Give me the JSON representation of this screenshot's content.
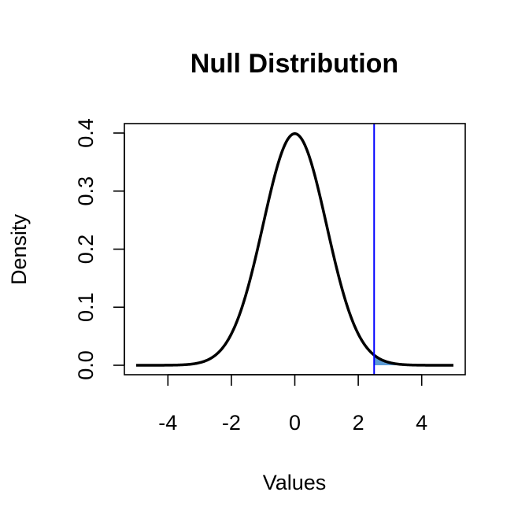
{
  "chart_data": {
    "type": "line",
    "title": "Null Distribution",
    "xlabel": "Values",
    "ylabel": "Density",
    "xlim": [
      -5,
      5
    ],
    "ylim": [
      0,
      0.4
    ],
    "x_ticks": [
      -4,
      -2,
      0,
      2,
      4
    ],
    "x_tick_labels": [
      "-4",
      "-2",
      "0",
      "2",
      "4"
    ],
    "y_ticks": [
      0.0,
      0.1,
      0.2,
      0.3,
      0.4
    ],
    "y_tick_labels": [
      "0.0",
      "0.1",
      "0.2",
      "0.3",
      "0.4"
    ],
    "grid": false,
    "series": [
      {
        "color": "#000000",
        "x": [
          -5.0,
          -4.5,
          -4.0,
          -3.5,
          -3.0,
          -2.75,
          -2.5,
          -2.25,
          -2.0,
          -1.75,
          -1.5,
          -1.25,
          -1.0,
          -0.75,
          -0.5,
          -0.25,
          0.0,
          0.25,
          0.5,
          0.75,
          1.0,
          1.25,
          1.5,
          1.75,
          2.0,
          2.25,
          2.5,
          2.75,
          3.0,
          3.5,
          4.0,
          4.5,
          5.0
        ],
        "y": [
          1.5e-06,
          1.6e-05,
          0.00013,
          0.00087,
          0.0044,
          0.0091,
          0.0175,
          0.0317,
          0.054,
          0.0863,
          0.1295,
          0.1826,
          0.242,
          0.3011,
          0.3521,
          0.3867,
          0.3989,
          0.3867,
          0.3521,
          0.3011,
          0.242,
          0.1826,
          0.1295,
          0.0863,
          0.054,
          0.0317,
          0.0175,
          0.0091,
          0.0044,
          0.00087,
          0.00013,
          1.6e-05,
          1.5e-06
        ]
      }
    ],
    "critical_value": 2.5,
    "critical_line_color": "#0000ff",
    "shaded_region": {
      "from": 2.5,
      "to": 5.0,
      "color": "#5b9bd5"
    }
  }
}
